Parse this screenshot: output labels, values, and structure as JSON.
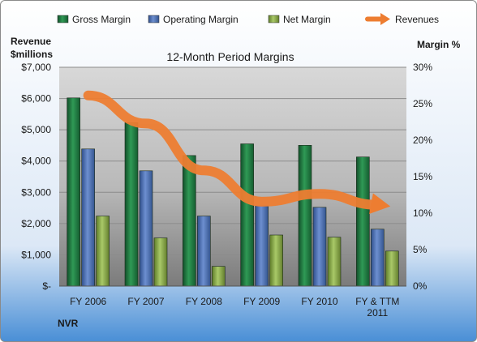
{
  "chart_data": {
    "type": "bar",
    "title": "12-Month Period Margins",
    "company": "NVR",
    "left_axis_label": "Revenue $millions",
    "right_axis_label": "Margin %",
    "categories": [
      "FY 2006",
      "FY 2007",
      "FY 2008",
      "FY 2009",
      "FY 2010",
      "FY & TTM 2011"
    ],
    "series": [
      {
        "name": "Gross Margin",
        "type": "bar",
        "axis": "right",
        "color": "#1e7a3c",
        "values": [
          25.8,
          22.4,
          17.9,
          19.5,
          19.3,
          17.7
        ]
      },
      {
        "name": "Operating Margin",
        "type": "bar",
        "axis": "right",
        "color": "#4f74b8",
        "values": [
          18.8,
          15.8,
          9.6,
          11.0,
          10.8,
          7.8
        ]
      },
      {
        "name": "Net Margin",
        "type": "bar",
        "axis": "right",
        "color": "#8fb04a",
        "values": [
          9.6,
          6.6,
          2.7,
          7.0,
          6.7,
          4.8
        ]
      },
      {
        "name": "Revenues",
        "type": "line",
        "axis": "left",
        "color": "#ed7d31",
        "values": [
          6100,
          5200,
          3700,
          2700,
          2950,
          2600
        ]
      }
    ],
    "left_axis": {
      "min": 0,
      "max": 7000,
      "ticks": [
        "$-",
        "$1,000",
        "$2,000",
        "$3,000",
        "$4,000",
        "$5,000",
        "$6,000",
        "$7,000"
      ]
    },
    "right_axis": {
      "min": 0,
      "max": 30,
      "ticks": [
        "0%",
        "5%",
        "10%",
        "15%",
        "20%",
        "25%",
        "30%"
      ]
    },
    "legend_position": "top",
    "grid": true
  }
}
